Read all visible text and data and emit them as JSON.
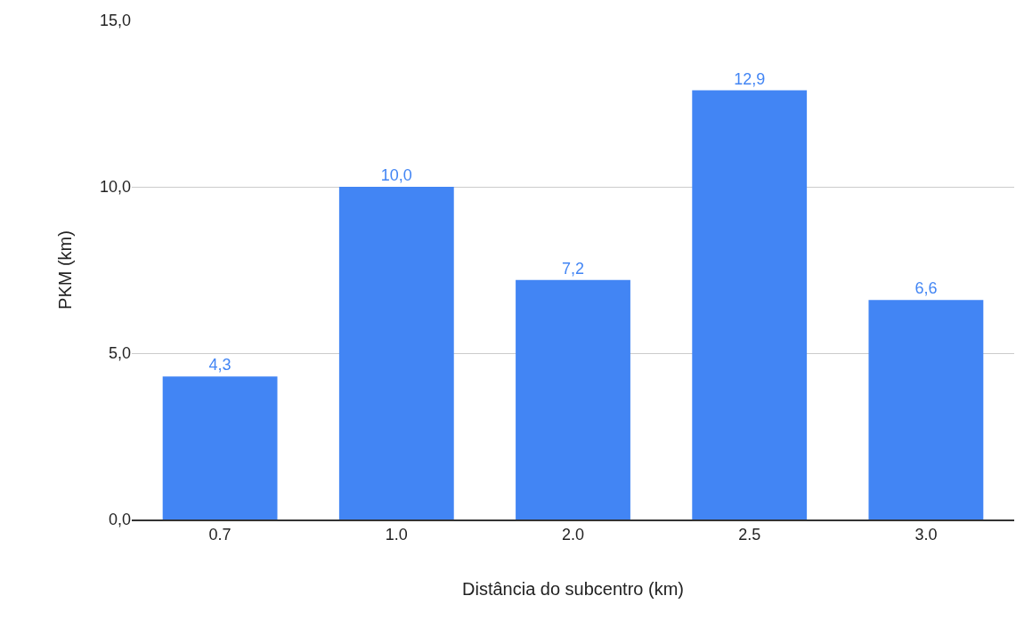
{
  "chart_data": {
    "type": "bar",
    "xlabel": "Distância do subcentro (km)",
    "ylabel": "PKM (km)",
    "categories": [
      "0.7",
      "1.0",
      "2.0",
      "2.5",
      "3.0"
    ],
    "values": [
      4.3,
      10.0,
      7.2,
      12.9,
      6.6
    ],
    "value_labels": [
      "4,3",
      "10,0",
      "7,2",
      "12,9",
      "6,6"
    ],
    "color": "#4285f4",
    "ylim": [
      0,
      15
    ],
    "yticks": [
      {
        "value": 0,
        "label": "0,0"
      },
      {
        "value": 5,
        "label": "5,0"
      },
      {
        "value": 10,
        "label": "10,0"
      },
      {
        "value": 15,
        "label": "15,0"
      }
    ],
    "grid": "y",
    "legend": false
  }
}
